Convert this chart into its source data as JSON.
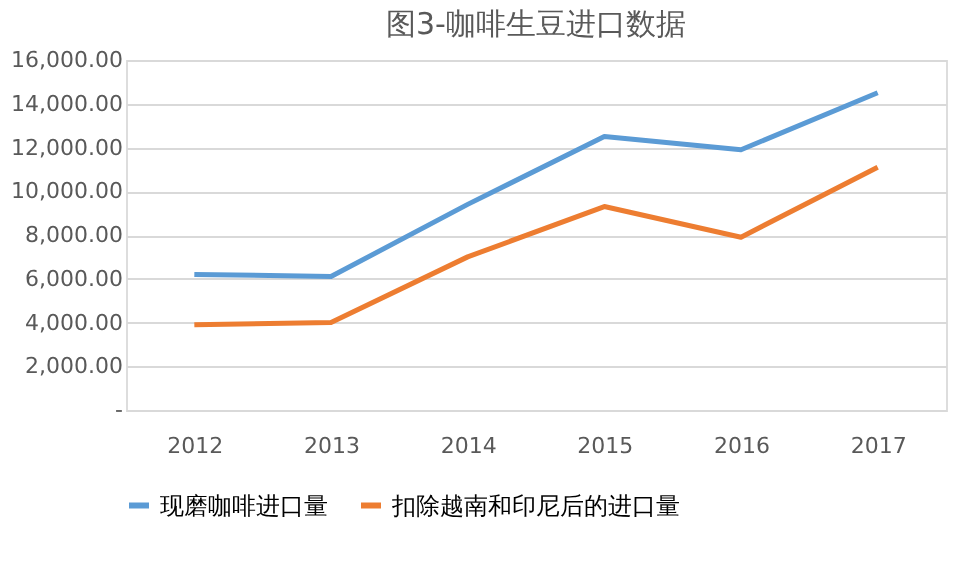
{
  "chart_data": {
    "type": "line",
    "title": "图3-咖啡生豆进口数据",
    "categories": [
      "2012",
      "2013",
      "2014",
      "2015",
      "2016",
      "2017"
    ],
    "series": [
      {
        "name": "现磨咖啡进口量",
        "color": "#5b9bd5",
        "values": [
          6200,
          6100,
          9400,
          12500,
          11900,
          14500
        ]
      },
      {
        "name": "扣除越南和印尼后的进口量",
        "color": "#ed7d31",
        "values": [
          3900,
          4000,
          7000,
          9300,
          7900,
          11100
        ]
      }
    ],
    "ylim": [
      0,
      16000
    ],
    "yticks": [
      {
        "value": 0,
        "label": "-"
      },
      {
        "value": 2000,
        "label": "2,000.00"
      },
      {
        "value": 4000,
        "label": "4,000.00"
      },
      {
        "value": 6000,
        "label": "6,000.00"
      },
      {
        "value": 8000,
        "label": "8,000.00"
      },
      {
        "value": 10000,
        "label": "10,000.00"
      },
      {
        "value": 12000,
        "label": "12,000.00"
      },
      {
        "value": 14000,
        "label": "14,000.00"
      },
      {
        "value": 16000,
        "label": "16,000.00"
      }
    ],
    "grid": "y",
    "legend": "bottom",
    "marker": "none",
    "line_style": "solid"
  }
}
